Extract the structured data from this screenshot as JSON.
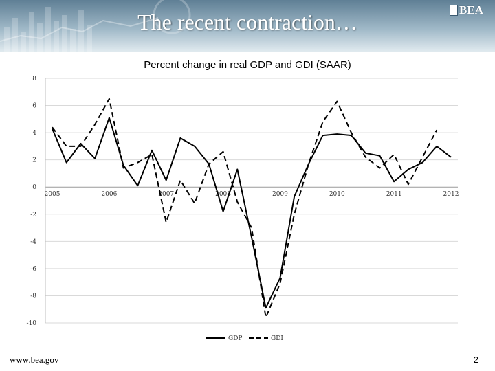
{
  "slide": {
    "title": "The recent contraction…",
    "logo_text": "BEA",
    "footer_url": "www.bea.gov",
    "page_number": "2"
  },
  "chart_data": {
    "type": "line",
    "title": "Percent change in real GDP and GDI (SAAR)",
    "xlabel": "",
    "ylabel": "",
    "ylim": [
      -10,
      8
    ],
    "yticks": [
      8,
      6,
      4,
      2,
      0,
      -2,
      -4,
      -6,
      -8,
      -10
    ],
    "year_labels": [
      {
        "label": "2005",
        "q": 0
      },
      {
        "label": "2006",
        "q": 4
      },
      {
        "label": "2007",
        "q": 8
      },
      {
        "label": "2008",
        "q": 12
      },
      {
        "label": "2009",
        "q": 16
      },
      {
        "label": "2010",
        "q": 20
      },
      {
        "label": "2011",
        "q": 24
      },
      {
        "label": "2012",
        "q": 28
      }
    ],
    "grid": true,
    "legend_position": "bottom",
    "series": [
      {
        "name": "GDP",
        "style": "solid",
        "color": "#000000",
        "values": [
          4.3,
          1.8,
          3.2,
          2.1,
          5.1,
          1.6,
          0.1,
          2.7,
          0.5,
          3.6,
          3.0,
          1.7,
          -1.8,
          1.3,
          -3.7,
          -8.9,
          -6.7,
          -0.7,
          1.7,
          3.8,
          3.9,
          3.8,
          2.5,
          2.3,
          0.4,
          1.3,
          1.8,
          3.0,
          2.2
        ]
      },
      {
        "name": "GDI",
        "style": "dashed",
        "color": "#000000",
        "values": [
          4.4,
          3.0,
          3.0,
          4.6,
          6.5,
          1.4,
          1.8,
          2.4,
          -2.6,
          0.5,
          -1.2,
          1.7,
          2.6,
          -1.1,
          -3.0,
          -9.6,
          -7.1,
          -2.0,
          1.7,
          4.8,
          6.3,
          4.0,
          2.2,
          1.4,
          2.4,
          0.2,
          2.2,
          4.2,
          null
        ]
      }
    ]
  }
}
